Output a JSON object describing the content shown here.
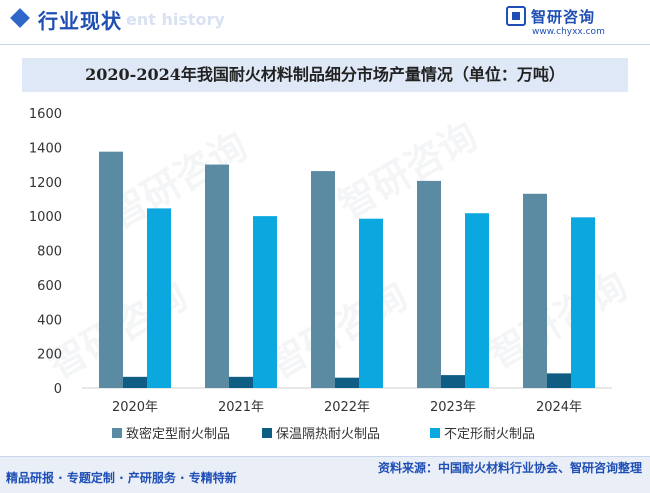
{
  "header": {
    "title": "行业现状",
    "ghost_text": "ent history",
    "brand_name": "智研咨询",
    "brand_url": "www.chyxx.com"
  },
  "watermark_text": "智研咨询",
  "footer": {
    "slogan": "精品研报 · 专题定制 · 产研服务 · 专精特新",
    "source": "资料来源：中国耐火材料行业协会、智研咨询整理"
  },
  "colors": {
    "accent": "#1f4fb5",
    "series1": "#5b8ba3",
    "series2": "#0f5d82",
    "series3": "#0ba8e0"
  },
  "chart_data": {
    "type": "bar",
    "title": "2020-2024年我国耐火材料制品细分市场产量情况（单位：万吨）",
    "categories": [
      "2020年",
      "2021年",
      "2022年",
      "2023年",
      "2024年"
    ],
    "series": [
      {
        "name": "致密定型耐火制品",
        "values": [
          1375,
          1300,
          1262,
          1205,
          1130
        ]
      },
      {
        "name": "保温隔热耐火制品",
        "values": [
          65,
          65,
          60,
          75,
          85
        ]
      },
      {
        "name": "不定形耐火制品",
        "values": [
          1045,
          1000,
          985,
          1017,
          993
        ]
      }
    ],
    "ylim": [
      0,
      1600
    ],
    "yticks": [
      "0",
      "200",
      "400",
      "600",
      "800",
      "1000",
      "1200",
      "1400",
      "1600"
    ],
    "xlabel": "",
    "ylabel": "",
    "legend": "bottom",
    "grid": false
  }
}
